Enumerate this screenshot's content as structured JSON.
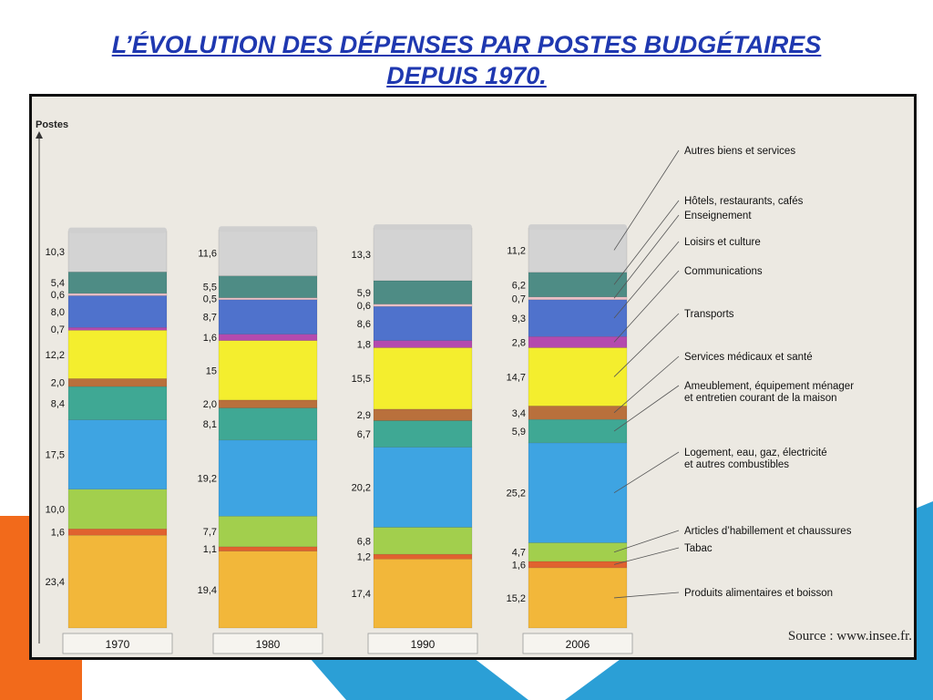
{
  "slide": {
    "title_line1": "L’ÉVOLUTION DES DÉPENSES PAR POSTES BUDGÉTAIRES",
    "title_line2": "DEPUIS 1970."
  },
  "colors": {
    "title": "#1f38b0",
    "deco_orange": "#f26a1b",
    "deco_blue": "#2b9fd6"
  },
  "chart_data": {
    "type": "bar",
    "stacked": true,
    "percent": true,
    "ylabel": "Postes",
    "categories": [
      "1970",
      "1980",
      "1990",
      "2006"
    ],
    "series": [
      {
        "name": "Produits alimentaires et boisson",
        "color": "#f2b73a",
        "values": [
          23.4,
          19.4,
          17.4,
          15.2
        ]
      },
      {
        "name": "Tabac",
        "color": "#e0622f",
        "values": [
          1.6,
          1.1,
          1.2,
          1.6
        ]
      },
      {
        "name": "Articles d’habillement et chaussures",
        "color": "#a2cf4d",
        "values": [
          10.0,
          7.7,
          6.8,
          4.7
        ]
      },
      {
        "name": "Logement, eau, gaz, électricité et autres combustibles",
        "color": "#3ea4e2",
        "values": [
          17.5,
          19.2,
          20.2,
          25.2
        ]
      },
      {
        "name": "Ameublement, équipement ménager et entretien courant de la maison",
        "color": "#3fa894",
        "values": [
          8.4,
          8.1,
          6.7,
          5.9
        ]
      },
      {
        "name": "Services médicaux et santé",
        "color": "#b9703c",
        "values": [
          2.0,
          2.0,
          2.9,
          3.4
        ]
      },
      {
        "name": "Transports",
        "color": "#f4ee2e",
        "values": [
          12.2,
          15,
          15.5,
          14.7
        ]
      },
      {
        "name": "Communications",
        "color": "#b44aae",
        "values": [
          0.7,
          1.6,
          1.8,
          2.8
        ]
      },
      {
        "name": "Loisirs et culture",
        "color": "#4f72cc",
        "values": [
          8.0,
          8.7,
          8.6,
          9.3
        ]
      },
      {
        "name": "Enseignement",
        "color": "#eac0c6",
        "values": [
          0.6,
          0.5,
          0.6,
          0.7
        ]
      },
      {
        "name": "Hôtels, restaurants, cafés",
        "color": "#4e8c85",
        "values": [
          5.4,
          5.5,
          5.9,
          6.2
        ]
      },
      {
        "name": "Autres biens et services",
        "color": "#d3d3d3",
        "values": [
          10.3,
          11.6,
          13.3,
          11.2
        ]
      }
    ],
    "value_labels": [
      [
        "23,4",
        "1,6",
        "10,0",
        "17,5",
        "8,4",
        "2,0",
        "12,2",
        "0,7",
        "8,0",
        "0,6",
        "5,4",
        "10,3"
      ],
      [
        "19,4",
        "1,1",
        "7,7",
        "19,2",
        "8,1",
        "2,0",
        "15",
        "1,6",
        "8,7",
        "0,5",
        "5,5",
        "11,6"
      ],
      [
        "17,4",
        "1,2",
        "6,8",
        "20,2",
        "6,7",
        "2,9",
        "15,5",
        "1,8",
        "8,6",
        "0,6",
        "5,9",
        "13,3"
      ],
      [
        "15,2",
        "1,6",
        "4,7",
        "25,2",
        "5,9",
        "3,4",
        "14,7",
        "2,8",
        "9,3",
        "0,7",
        "6,2",
        "11,2"
      ]
    ],
    "legend_lines": [
      [
        "Produits alimentaires et boisson"
      ],
      [
        "Tabac"
      ],
      [
        "Articles d’habillement et chaussures"
      ],
      [
        "Logement, eau, gaz, électricité",
        "et autres combustibles"
      ],
      [
        "Ameublement, équipement ménager",
        "et entretien courant de la maison"
      ],
      [
        "Services médicaux et santé"
      ],
      [
        "Transports"
      ],
      [
        "Communications"
      ],
      [
        "Loisirs et culture"
      ],
      [
        "Enseignement"
      ],
      [
        "Hôtels, restaurants, cafés"
      ],
      [
        "Autres biens et services"
      ]
    ],
    "legend_placement": "right",
    "source": "Source : www.insee.fr.",
    "grid": false
  }
}
